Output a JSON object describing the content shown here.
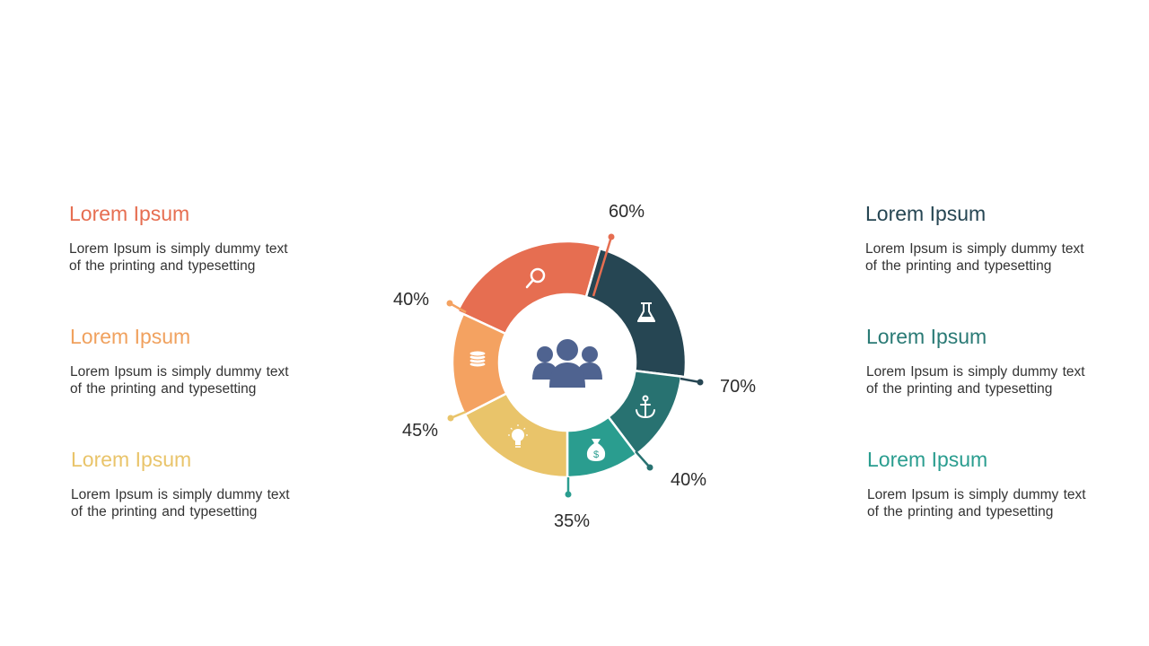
{
  "blocks": [
    {
      "title": "Lorem Ipsum",
      "text1": "Lorem Ipsum  is simply dummy text",
      "text2": "of the printing and typesetting",
      "color": "#e66e51"
    },
    {
      "title": "Lorem Ipsum",
      "text1": "Lorem Ipsum  is simply dummy text",
      "text2": "of the printing and typesetting",
      "color": "#f0a15e"
    },
    {
      "title": "Lorem Ipsum",
      "text1": "Lorem Ipsum  is simply dummy text",
      "text2": "of the printing and typesetting",
      "color": "#e9c46a"
    },
    {
      "title": "Lorem Ipsum",
      "text1": "Lorem Ipsum  is simply dummy text",
      "text2": "of the printing and typesetting",
      "color": "#264653"
    },
    {
      "title": "Lorem Ipsum",
      "text1": "Lorem Ipsum  is simply dummy text",
      "text2": "of the printing and typesetting",
      "color": "#2a7a75"
    },
    {
      "title": "Lorem Ipsum",
      "text1": "Lorem Ipsum  is simply dummy text",
      "text2": "of the printing and typesetting",
      "color": "#2a9d8f"
    }
  ],
  "segments": [
    {
      "label": "60%",
      "icon": "magnifier-icon",
      "color": "#e66e51"
    },
    {
      "label": "70%",
      "icon": "flask-icon",
      "color": "#264653"
    },
    {
      "label": "40%",
      "icon": "anchor-icon",
      "color": "#287271"
    },
    {
      "label": "35%",
      "icon": "money-bag-icon",
      "color": "#2a9d8f"
    },
    {
      "label": "45%",
      "icon": "lightbulb-icon",
      "color": "#e9c46a"
    },
    {
      "label": "40%",
      "icon": "coins-icon",
      "color": "#f4a261"
    }
  ],
  "center": {
    "icon": "people-group-icon",
    "color": "#4f6390"
  }
}
